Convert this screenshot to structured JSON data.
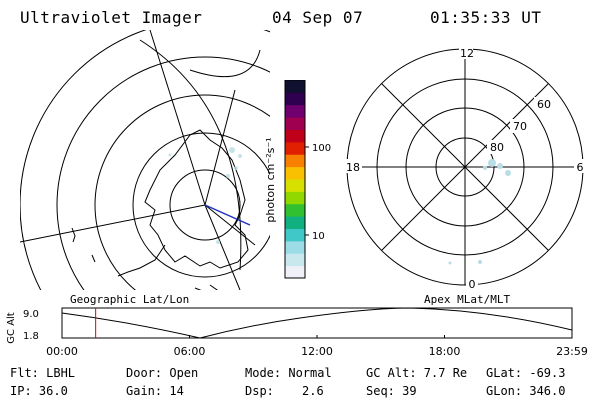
{
  "header": {
    "title": "Ultraviolet Imager",
    "date": "04 Sep 07",
    "time": "01:35:33 UT"
  },
  "panels": {
    "left_label": "Geographic Lat/Lon",
    "right_label": "Apex MLat/MLT",
    "polar": {
      "mlt_labels": {
        "top": "12",
        "left": "18",
        "right": "6",
        "bottom": "0"
      },
      "lat_labels": [
        "60",
        "70",
        "80"
      ]
    }
  },
  "colorbar": {
    "unit_label": "photon cm⁻²s⁻¹",
    "ticks": [
      "100",
      "10"
    ],
    "colors": [
      "#f0f0f8",
      "#c8e8ee",
      "#9cdce6",
      "#40c8c8",
      "#10b080",
      "#30c030",
      "#90d800",
      "#d8e000",
      "#f8c000",
      "#f88000",
      "#e02000",
      "#c00018",
      "#a00050",
      "#700070",
      "#300050",
      "#101030"
    ]
  },
  "altitude_plot": {
    "ylabel": "GC Alt",
    "y_ticks": [
      "9.0",
      "1.8"
    ],
    "x_ticks": [
      "00:00",
      "06:00",
      "12:00",
      "18:00",
      "23:59"
    ],
    "current_time_fraction": 0.066,
    "marker_color": "#e00000"
  },
  "info": {
    "flt": "Flt: LBHL",
    "door": "Door: Open",
    "mode": "Mode: Normal",
    "gc_alt": "GC Alt: 7.7 Re",
    "glat": "GLat: -69.3",
    "ip": "IP: 36.0",
    "gain": "Gain: 14",
    "dsp_label": "Dsp:",
    "dsp_value": "2.6",
    "seq": "Seq: 39",
    "glon": "GLon: 346.0"
  }
}
